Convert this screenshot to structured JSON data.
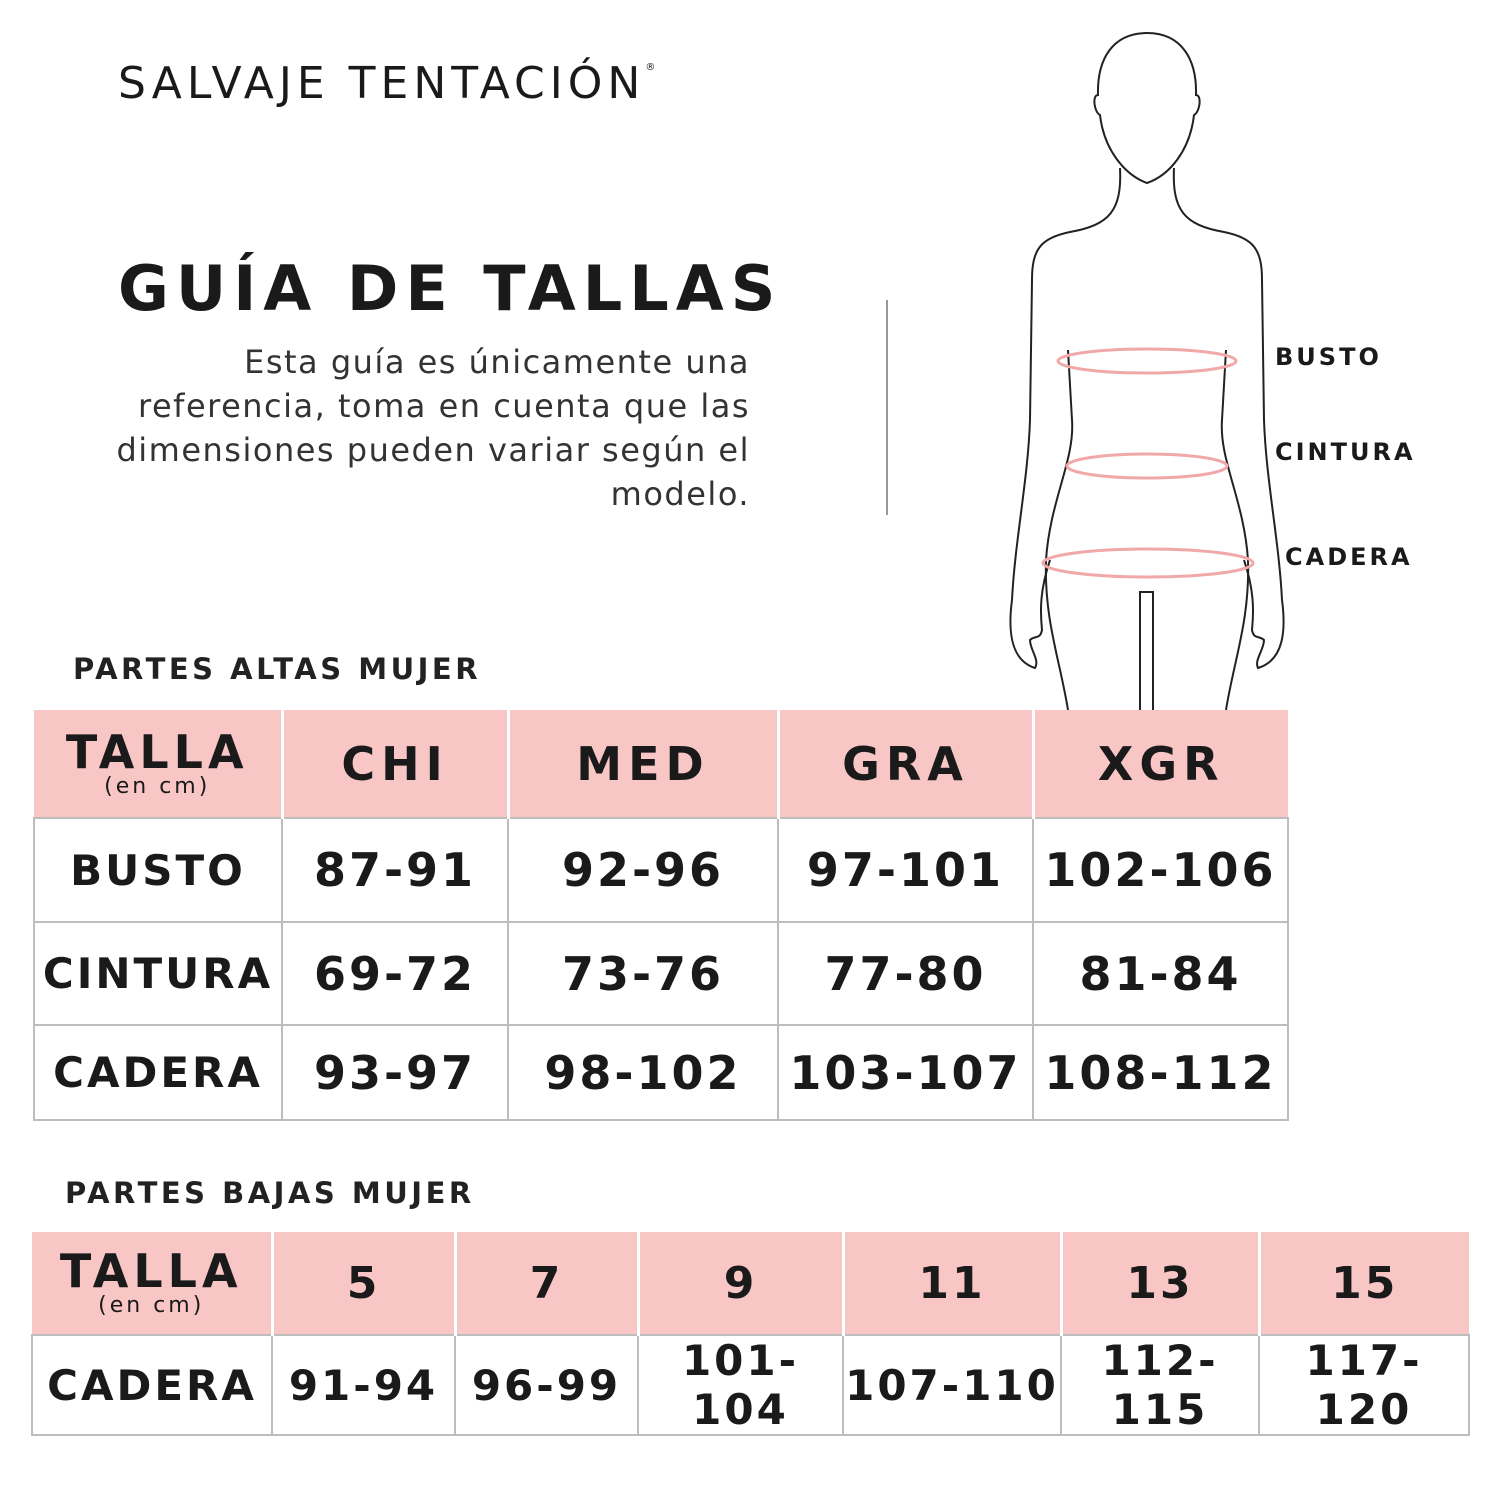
{
  "brand": {
    "name": "SALVAJE TENTACIÓN",
    "mark": "®"
  },
  "header": {
    "title": "GUÍA DE TALLAS",
    "description": "Esta guía es únicamente una referencia, toma en cuenta que las dimensiones pueden variar según el modelo."
  },
  "figure": {
    "labels": [
      "BUSTO",
      "CINTURA",
      "CADERA"
    ],
    "measure_color": "#f0a8a8",
    "outline_color": "#222222"
  },
  "colors": {
    "header_bg": "#f9c6c6",
    "grid": "#bdbdbd"
  },
  "tops": {
    "section_title": "PARTES ALTAS MUJER",
    "header": {
      "talla": "TALLA",
      "unit": "(en cm)",
      "sizes": [
        "CHI",
        "MED",
        "GRA",
        "XGR"
      ]
    },
    "rows": [
      {
        "label": "BUSTO",
        "values": [
          "87-91",
          "92-96",
          "97-101",
          "102-106"
        ]
      },
      {
        "label": "CINTURA",
        "values": [
          "69-72",
          "73-76",
          "77-80",
          "81-84"
        ]
      },
      {
        "label": "CADERA",
        "values": [
          "93-97",
          "98-102",
          "103-107",
          "108-112"
        ]
      }
    ]
  },
  "bottoms": {
    "section_title": "PARTES BAJAS MUJER",
    "header": {
      "talla": "TALLA",
      "unit": "(en cm)",
      "sizes": [
        "5",
        "7",
        "9",
        "11",
        "13",
        "15"
      ]
    },
    "rows": [
      {
        "label": "CADERA",
        "values": [
          "91-94",
          "96-99",
          "101-104",
          "107-110",
          "112-115",
          "117-120"
        ]
      }
    ]
  }
}
